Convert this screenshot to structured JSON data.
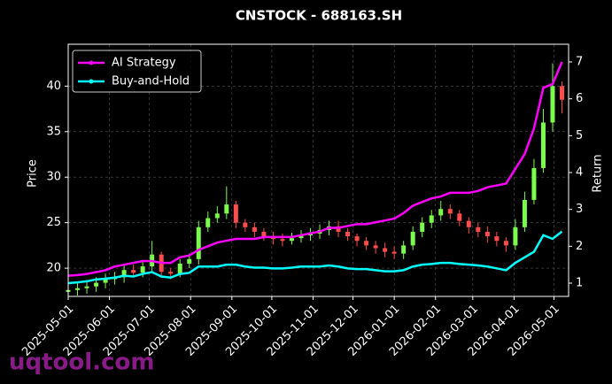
{
  "chart_data": {
    "type": "candlestick",
    "title": "CNSTOCK - 688163.SH",
    "ylabel": "Price",
    "y2label": "Return",
    "watermark": "uqtool.com",
    "up_color": "#7cfc4c",
    "down_color": "#ff4d4d",
    "x": [
      "2025-05-01",
      "2025-05-08",
      "2025-05-15",
      "2025-05-22",
      "2025-05-29",
      "2025-06-05",
      "2025-06-12",
      "2025-06-19",
      "2025-06-26",
      "2025-07-03",
      "2025-07-10",
      "2025-07-17",
      "2025-07-24",
      "2025-07-31",
      "2025-08-07",
      "2025-08-14",
      "2025-08-21",
      "2025-08-28",
      "2025-09-04",
      "2025-09-11",
      "2025-09-18",
      "2025-09-25",
      "2025-10-02",
      "2025-10-09",
      "2025-10-16",
      "2025-10-23",
      "2025-10-30",
      "2025-11-06",
      "2025-11-13",
      "2025-11-20",
      "2025-11-27",
      "2025-12-04",
      "2025-12-11",
      "2025-12-18",
      "2025-12-25",
      "2026-01-01",
      "2026-01-08",
      "2026-01-15",
      "2026-01-22",
      "2026-01-29",
      "2026-02-05",
      "2026-02-12",
      "2026-02-19",
      "2026-02-26",
      "2026-03-05",
      "2026-03-12",
      "2026-03-19",
      "2026-03-26",
      "2026-04-02",
      "2026-04-09",
      "2026-04-16",
      "2026-04-23",
      "2026-04-30",
      "2026-05-07"
    ],
    "open": [
      17.4,
      17.6,
      17.8,
      18.0,
      18.4,
      18.8,
      19.0,
      19.8,
      19.5,
      20.2,
      21.5,
      19.6,
      19.4,
      20.5,
      21.0,
      24.5,
      25.5,
      26.0,
      27.0,
      25.0,
      24.5,
      24.0,
      23.5,
      23.2,
      23.0,
      23.3,
      23.6,
      23.8,
      24.2,
      24.6,
      24.0,
      23.5,
      23.0,
      22.5,
      22.2,
      21.8,
      21.6,
      22.5,
      24.0,
      25.0,
      25.8,
      26.5,
      26.0,
      25.2,
      24.5,
      24.0,
      23.5,
      23.0,
      22.5,
      24.5,
      27.5,
      31.0,
      36.0,
      40.0
    ],
    "high": [
      18.2,
      18.4,
      18.6,
      19.0,
      19.4,
      19.6,
      20.4,
      20.4,
      20.8,
      23.0,
      21.8,
      20.0,
      21.0,
      21.6,
      25.2,
      26.2,
      26.8,
      29.0,
      27.4,
      25.4,
      25.0,
      24.4,
      24.0,
      23.8,
      23.9,
      24.2,
      24.4,
      24.8,
      25.2,
      25.2,
      24.4,
      23.8,
      23.4,
      23.0,
      22.8,
      22.4,
      23.0,
      24.6,
      25.6,
      26.4,
      27.4,
      27.0,
      26.4,
      25.6,
      25.0,
      24.6,
      24.0,
      23.4,
      25.4,
      28.4,
      32.0,
      37.5,
      42.5,
      40.5
    ],
    "low": [
      16.8,
      17.0,
      17.2,
      17.4,
      17.8,
      18.2,
      18.4,
      19.0,
      19.0,
      19.6,
      19.2,
      18.8,
      19.0,
      20.0,
      20.4,
      24.0,
      25.0,
      25.4,
      24.4,
      24.0,
      23.4,
      23.0,
      22.6,
      22.4,
      22.6,
      22.8,
      23.0,
      23.2,
      23.6,
      23.4,
      23.0,
      22.4,
      22.0,
      21.6,
      21.2,
      21.0,
      21.0,
      22.0,
      23.4,
      24.4,
      25.2,
      25.4,
      24.6,
      23.8,
      23.4,
      22.8,
      22.4,
      21.8,
      22.0,
      24.0,
      27.0,
      30.5,
      35.0,
      37.0
    ],
    "close": [
      17.6,
      17.8,
      18.0,
      18.4,
      18.8,
      19.0,
      19.8,
      19.5,
      20.2,
      21.5,
      19.6,
      19.4,
      20.5,
      21.0,
      24.5,
      25.5,
      26.0,
      27.0,
      25.0,
      24.5,
      24.0,
      23.5,
      23.2,
      23.0,
      23.3,
      23.6,
      23.8,
      24.2,
      24.6,
      24.0,
      23.5,
      23.0,
      22.5,
      22.2,
      21.8,
      21.6,
      22.5,
      24.0,
      25.0,
      25.8,
      26.5,
      26.0,
      25.2,
      24.5,
      24.0,
      23.5,
      23.0,
      22.5,
      24.5,
      27.5,
      31.0,
      36.0,
      40.0,
      38.5
    ],
    "series": [
      {
        "name": "AI Strategy",
        "color": "#ff00ff",
        "axis": "y2",
        "values": [
          1.2,
          1.22,
          1.25,
          1.3,
          1.35,
          1.45,
          1.5,
          1.55,
          1.6,
          1.6,
          1.55,
          1.55,
          1.7,
          1.75,
          1.9,
          2.0,
          2.1,
          2.15,
          2.2,
          2.2,
          2.2,
          2.25,
          2.25,
          2.25,
          2.25,
          2.3,
          2.35,
          2.4,
          2.5,
          2.5,
          2.55,
          2.6,
          2.6,
          2.65,
          2.7,
          2.75,
          2.9,
          3.1,
          3.2,
          3.3,
          3.35,
          3.45,
          3.45,
          3.45,
          3.5,
          3.6,
          3.65,
          3.7,
          4.1,
          4.5,
          5.2,
          6.3,
          6.4,
          7.0
        ]
      },
      {
        "name": "Buy-and-Hold",
        "color": "#00ffff",
        "axis": "y2",
        "values": [
          1.0,
          1.02,
          1.05,
          1.1,
          1.12,
          1.15,
          1.2,
          1.18,
          1.25,
          1.3,
          1.18,
          1.15,
          1.25,
          1.28,
          1.45,
          1.45,
          1.45,
          1.5,
          1.5,
          1.45,
          1.42,
          1.42,
          1.4,
          1.4,
          1.42,
          1.45,
          1.45,
          1.45,
          1.48,
          1.45,
          1.4,
          1.38,
          1.38,
          1.35,
          1.32,
          1.32,
          1.35,
          1.45,
          1.5,
          1.52,
          1.55,
          1.55,
          1.52,
          1.5,
          1.48,
          1.45,
          1.4,
          1.35,
          1.55,
          1.7,
          1.85,
          2.3,
          2.2,
          2.4
        ]
      }
    ],
    "xlim": [
      "2025-05-01",
      "2026-05-12"
    ],
    "xticks": [
      "2025-05-01",
      "2025-06-01",
      "2025-07-01",
      "2025-08-01",
      "2025-09-01",
      "2025-10-01",
      "2025-11-01",
      "2025-12-01",
      "2026-01-01",
      "2026-02-01",
      "2026-03-01",
      "2026-04-01",
      "2026-05-01"
    ],
    "ylim": [
      16.9,
      44.6
    ],
    "yticks": [
      20,
      25,
      30,
      35,
      40
    ],
    "y2lim": [
      0.64,
      7.48
    ],
    "y2ticks": [
      1,
      2,
      3,
      4,
      5,
      6,
      7
    ],
    "grid": true,
    "legend": "upper left"
  }
}
